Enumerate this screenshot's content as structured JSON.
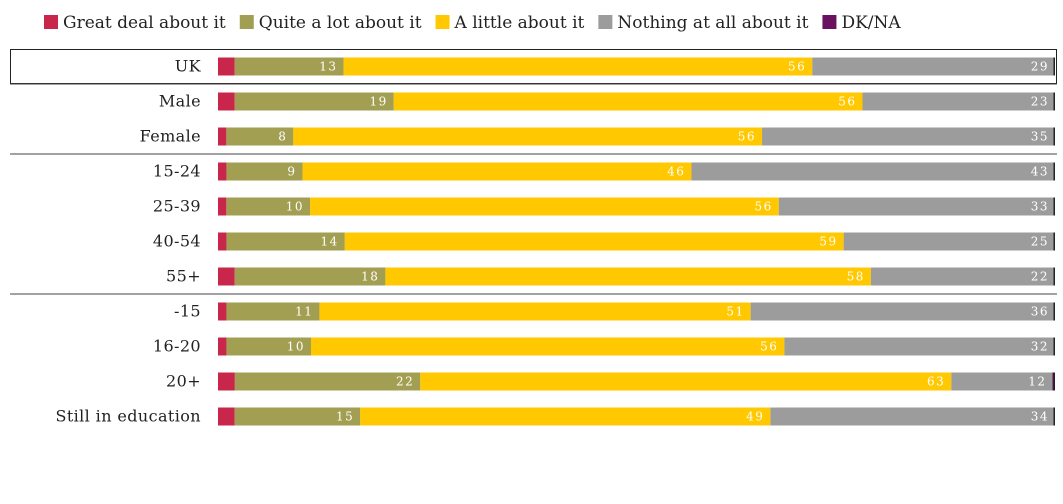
{
  "chart_data": {
    "type": "bar",
    "orientation": "horizontal",
    "stacked": true,
    "legend_position": "top",
    "categories": [
      "UK",
      "Male",
      "Female",
      "15-24",
      "25-39",
      "40-54",
      "55+",
      "-15",
      "16-20",
      "20+",
      "Still in education"
    ],
    "series": [
      {
        "name": "Great deal about it",
        "color": "#c8264a",
        "values": [
          2,
          2,
          1,
          1,
          1,
          1,
          2,
          1,
          1,
          2,
          2
        ],
        "show_labels": false
      },
      {
        "name": "Quite a lot about it",
        "color": "#a39f52",
        "values": [
          13,
          19,
          8,
          9,
          10,
          14,
          18,
          11,
          10,
          22,
          15
        ],
        "show_labels": true
      },
      {
        "name": "A little about it",
        "color": "#ffc800",
        "values": [
          56,
          56,
          56,
          46,
          56,
          59,
          58,
          51,
          56,
          63,
          49
        ],
        "show_labels": true
      },
      {
        "name": "Nothing at all about it",
        "color": "#9c9c9c",
        "values": [
          29,
          23,
          35,
          43,
          33,
          25,
          22,
          36,
          32,
          12,
          34
        ],
        "show_labels": true
      },
      {
        "name": "DK/NA",
        "color": "#6a1060",
        "values": [
          0,
          0,
          0,
          0,
          0,
          0,
          0,
          0,
          0,
          0.3,
          0
        ],
        "show_labels": false
      }
    ],
    "group_separators_after": [
      "UK",
      "Female",
      "55+"
    ],
    "highlighted_category": "UK"
  }
}
